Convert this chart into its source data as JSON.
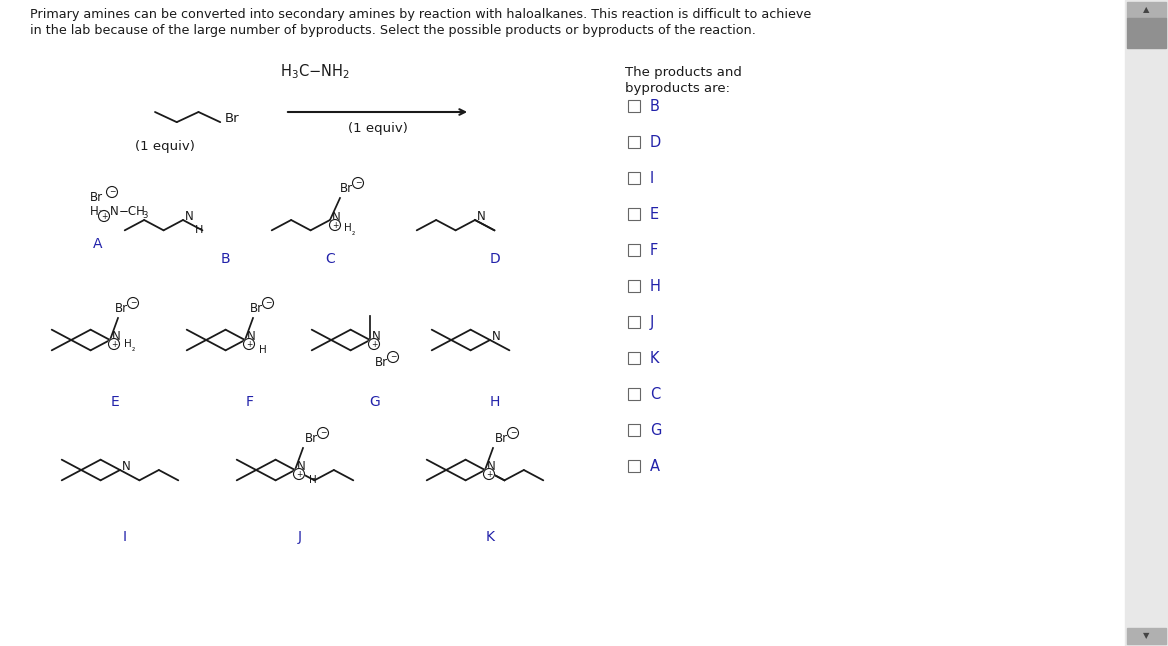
{
  "bg_color": "#ffffff",
  "text_color": "#2a2a2a",
  "blue_color": "#2222aa",
  "checkbox_labels": [
    "B",
    "D",
    "I",
    "E",
    "F",
    "H",
    "J",
    "K",
    "C",
    "G",
    "A"
  ],
  "title_line1": "Primary amines can be converted into secondary amines by reaction with haloalkanes. This reaction is difficult to achieve",
  "title_line2": "in the lab because of the large number of byproducts. Select the possible products or byproducts of the reaction."
}
